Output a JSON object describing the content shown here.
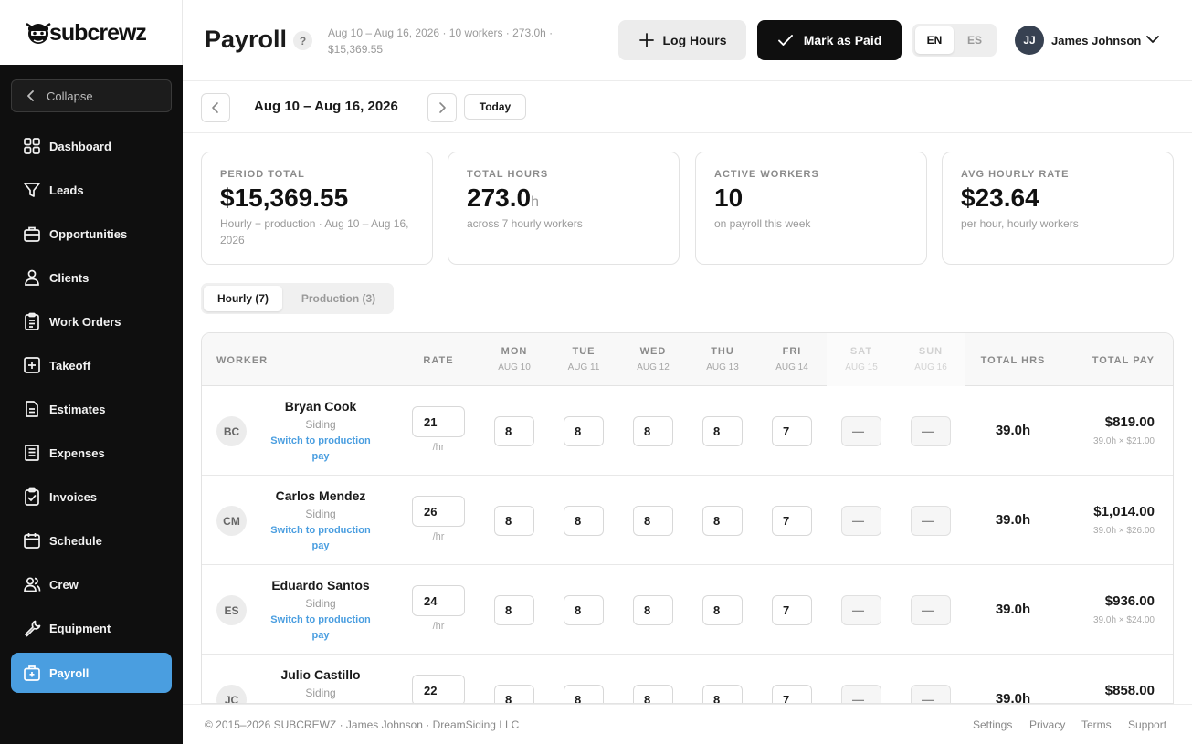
{
  "brand": {
    "name": "subcrewz"
  },
  "sidebar": {
    "collapse_label": "Collapse",
    "items": [
      {
        "label": "Dashboard",
        "icon": "grid-icon"
      },
      {
        "label": "Leads",
        "icon": "funnel-icon"
      },
      {
        "label": "Opportunities",
        "icon": "briefcase-icon"
      },
      {
        "label": "Clients",
        "icon": "people-icon"
      },
      {
        "label": "Work Orders",
        "icon": "clipboard-icon"
      },
      {
        "label": "Takeoff",
        "icon": "plus-square-icon"
      },
      {
        "label": "Estimates",
        "icon": "document-icon"
      },
      {
        "label": "Expenses",
        "icon": "receipt-icon"
      },
      {
        "label": "Invoices",
        "icon": "clipboard-check-icon"
      },
      {
        "label": "Schedule",
        "icon": "calendar-icon"
      },
      {
        "label": "Crew",
        "icon": "crew-icon"
      },
      {
        "label": "Equipment",
        "icon": "wrench-icon"
      },
      {
        "label": "Payroll",
        "icon": "payroll-icon",
        "active": true
      }
    ],
    "active_color": "#4a9ee0"
  },
  "header": {
    "title": "Payroll",
    "help": "?",
    "meta": "Aug 10 – Aug 16, 2026  ·  10 workers  ·  273.0h  ·  $15,369.55",
    "log_hours_label": "Log Hours",
    "mark_paid_label": "Mark as Paid",
    "lang_en": "EN",
    "lang_es": "ES",
    "user_initials": "JJ",
    "user_name": "James Johnson"
  },
  "date_bar": {
    "range": "Aug 10 – Aug 16, 2026",
    "today_label": "Today"
  },
  "stats": [
    {
      "label": "PERIOD TOTAL",
      "value": "$15,369.55",
      "unit": "",
      "sub": "Hourly + production · Aug 10 – Aug 16, 2026"
    },
    {
      "label": "TOTAL HOURS",
      "value": "273.0",
      "unit": "h",
      "sub": "across 7 hourly workers"
    },
    {
      "label": "ACTIVE WORKERS",
      "value": "10",
      "unit": "",
      "sub": "on payroll this week"
    },
    {
      "label": "AVG HOURLY RATE",
      "value": "$23.64",
      "unit": "",
      "sub": "per hour, hourly workers"
    }
  ],
  "tabs": [
    {
      "label": "Hourly (7)",
      "active": true
    },
    {
      "label": "Production (3)",
      "active": false
    }
  ],
  "table": {
    "col_worker": "WORKER",
    "col_rate": "RATE",
    "col_total_hrs": "TOTAL HRS",
    "col_total_pay": "TOTAL PAY",
    "days": [
      {
        "name": "MON",
        "date": "AUG 10",
        "weekend": false
      },
      {
        "name": "TUE",
        "date": "AUG 11",
        "weekend": false
      },
      {
        "name": "WED",
        "date": "AUG 12",
        "weekend": false
      },
      {
        "name": "THU",
        "date": "AUG 13",
        "weekend": false
      },
      {
        "name": "FRI",
        "date": "AUG 14",
        "weekend": false
      },
      {
        "name": "SAT",
        "date": "AUG 15",
        "weekend": true
      },
      {
        "name": "SUN",
        "date": "AUG 16",
        "weekend": true
      }
    ],
    "rate_unit": "/hr",
    "switch_label": "Switch to production pay",
    "rows": [
      {
        "initials": "BC",
        "name": "Bryan Cook",
        "trade": "Siding",
        "rate": "21",
        "hours": [
          "8",
          "8",
          "8",
          "8",
          "7",
          "—",
          "—"
        ],
        "total_hrs": "39.0h",
        "total_pay": "$819.00",
        "calc": "39.0h × $21.00"
      },
      {
        "initials": "CM",
        "name": "Carlos Mendez",
        "trade": "Siding",
        "rate": "26",
        "hours": [
          "8",
          "8",
          "8",
          "8",
          "7",
          "—",
          "—"
        ],
        "total_hrs": "39.0h",
        "total_pay": "$1,014.00",
        "calc": "39.0h × $26.00"
      },
      {
        "initials": "ES",
        "name": "Eduardo Santos",
        "trade": "Siding",
        "rate": "24",
        "hours": [
          "8",
          "8",
          "8",
          "8",
          "7",
          "—",
          "—"
        ],
        "total_hrs": "39.0h",
        "total_pay": "$936.00",
        "calc": "39.0h × $24.00"
      },
      {
        "initials": "JC",
        "name": "Julio Castillo",
        "trade": "Siding",
        "rate": "22",
        "hours": [
          "8",
          "8",
          "8",
          "8",
          "7",
          "—",
          "—"
        ],
        "total_hrs": "39.0h",
        "total_pay": "$858.00",
        "calc": ""
      }
    ]
  },
  "footer": {
    "copyright": "© 2015–2026 SUBCREWZ · James Johnson · DreamSiding LLC",
    "links": [
      "Settings",
      "Privacy",
      "Terms",
      "Support"
    ]
  }
}
